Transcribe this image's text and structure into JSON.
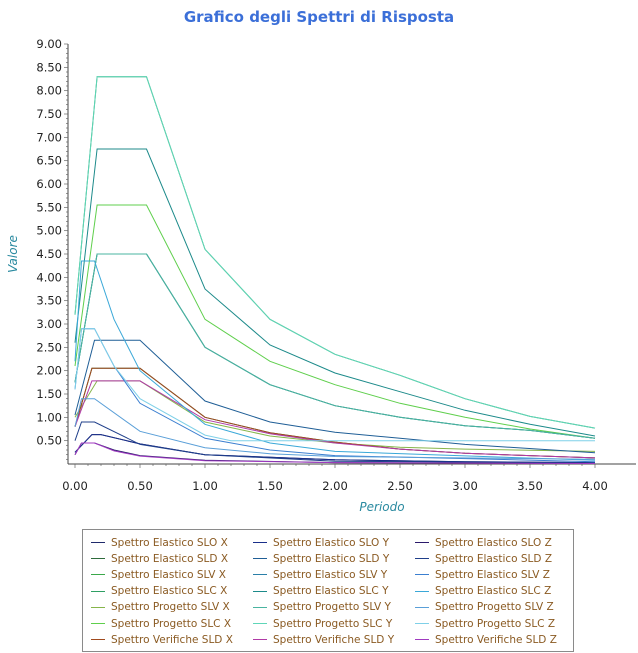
{
  "chart_data": {
    "type": "line",
    "title": "Grafico degli Spettri di Risposta",
    "xlabel": "Periodo",
    "ylabel": "Valore",
    "xlim": [
      0,
      4.0
    ],
    "ylim": [
      0,
      9.0
    ],
    "x_ticks": [
      "0.00",
      "0.50",
      "1.00",
      "1.50",
      "2.00",
      "2.50",
      "3.00",
      "3.50",
      "4.00"
    ],
    "y_ticks": [
      "0.50",
      "1.00",
      "1.50",
      "2.00",
      "2.50",
      "3.00",
      "3.50",
      "4.00",
      "4.50",
      "5.00",
      "5.50",
      "6.00",
      "6.50",
      "7.00",
      "7.50",
      "8.00",
      "8.50",
      "9.00"
    ],
    "grid": false,
    "legend_position": "bottom",
    "series": [
      {
        "name": "Spettro Elastico SLO X",
        "color": "#1f2a6b",
        "values": [
          [
            0.0,
            0.25
          ],
          [
            0.13,
            0.63
          ],
          [
            0.2,
            0.63
          ],
          [
            0.5,
            0.43
          ],
          [
            1.0,
            0.2
          ],
          [
            2.0,
            0.09
          ],
          [
            3.0,
            0.05
          ],
          [
            4.0,
            0.03
          ]
        ]
      },
      {
        "name": "Spettro Elastico SLD X",
        "color": "#2e6b3c",
        "values": [
          [
            0.0,
            0.8
          ],
          [
            0.13,
            2.05
          ],
          [
            0.5,
            2.05
          ],
          [
            1.0,
            1.0
          ],
          [
            1.5,
            0.67
          ],
          [
            2.0,
            0.47
          ],
          [
            2.5,
            0.32
          ],
          [
            3.0,
            0.23
          ],
          [
            4.0,
            0.13
          ]
        ]
      },
      {
        "name": "Spettro Elastico SLV X",
        "color": "#3aa84a",
        "values": [
          [
            0.0,
            1.75
          ],
          [
            0.17,
            4.5
          ],
          [
            0.55,
            4.5
          ],
          [
            1.0,
            2.5
          ],
          [
            1.5,
            1.7
          ],
          [
            2.0,
            1.25
          ],
          [
            2.5,
            1.0
          ],
          [
            3.0,
            0.82
          ],
          [
            3.5,
            0.72
          ],
          [
            4.0,
            0.55
          ]
        ]
      },
      {
        "name": "Spettro Elastico SLC X",
        "color": "#2e9f63",
        "values": [
          [
            0.0,
            3.2
          ],
          [
            0.17,
            8.3
          ],
          [
            0.55,
            8.3
          ],
          [
            1.0,
            4.6
          ],
          [
            1.5,
            3.1
          ],
          [
            2.0,
            2.35
          ],
          [
            2.5,
            1.9
          ],
          [
            3.0,
            1.4
          ],
          [
            3.5,
            1.02
          ],
          [
            4.0,
            0.77
          ]
        ]
      },
      {
        "name": "Spettro Progetto SLV X",
        "color": "#86b54a",
        "values": [
          [
            0.0,
            1.0
          ],
          [
            0.17,
            1.78
          ],
          [
            0.5,
            1.78
          ],
          [
            1.0,
            0.9
          ],
          [
            1.5,
            0.6
          ],
          [
            2.0,
            0.45
          ],
          [
            2.5,
            0.36
          ],
          [
            3.0,
            0.32
          ],
          [
            4.0,
            0.27
          ]
        ]
      },
      {
        "name": "Spettro Progetto SLC X",
        "color": "#5fcf4c",
        "values": [
          [
            0.0,
            2.1
          ],
          [
            0.17,
            5.55
          ],
          [
            0.55,
            5.55
          ],
          [
            1.0,
            3.1
          ],
          [
            1.5,
            2.2
          ],
          [
            2.0,
            1.7
          ],
          [
            2.5,
            1.3
          ],
          [
            3.0,
            1.0
          ],
          [
            3.5,
            0.75
          ],
          [
            4.0,
            0.55
          ]
        ]
      },
      {
        "name": "Spettro Verifiche SLD X",
        "color": "#a04a1e",
        "values": [
          [
            0.0,
            0.8
          ],
          [
            0.13,
            2.05
          ],
          [
            0.5,
            2.05
          ],
          [
            1.0,
            1.0
          ],
          [
            1.5,
            0.67
          ],
          [
            2.0,
            0.47
          ],
          [
            2.5,
            0.32
          ],
          [
            3.0,
            0.23
          ],
          [
            4.0,
            0.13
          ]
        ]
      },
      {
        "name": "Spettro Elastico SLO Y",
        "color": "#1a2f8a",
        "values": [
          [
            0.0,
            0.25
          ],
          [
            0.13,
            0.63
          ],
          [
            0.2,
            0.63
          ],
          [
            0.5,
            0.43
          ],
          [
            1.0,
            0.2
          ],
          [
            2.0,
            0.09
          ],
          [
            3.0,
            0.05
          ],
          [
            4.0,
            0.03
          ]
        ]
      },
      {
        "name": "Spettro Elastico SLD Y",
        "color": "#1f5e96",
        "values": [
          [
            0.0,
            1.05
          ],
          [
            0.15,
            2.65
          ],
          [
            0.5,
            2.65
          ],
          [
            1.0,
            1.35
          ],
          [
            1.5,
            0.9
          ],
          [
            2.0,
            0.68
          ],
          [
            2.5,
            0.55
          ],
          [
            3.0,
            0.42
          ],
          [
            4.0,
            0.24
          ]
        ]
      },
      {
        "name": "Spettro Elastico SLV Y",
        "color": "#2a7fa8",
        "values": [
          [
            0.0,
            1.75
          ],
          [
            0.17,
            4.5
          ],
          [
            0.55,
            4.5
          ],
          [
            1.0,
            2.5
          ],
          [
            1.5,
            1.7
          ],
          [
            2.0,
            1.25
          ],
          [
            2.5,
            1.0
          ],
          [
            3.0,
            0.82
          ],
          [
            3.5,
            0.72
          ],
          [
            4.0,
            0.55
          ]
        ]
      },
      {
        "name": "Spettro Elastico SLC Y",
        "color": "#1c8a8a",
        "values": [
          [
            0.0,
            2.6
          ],
          [
            0.17,
            6.75
          ],
          [
            0.55,
            6.75
          ],
          [
            1.0,
            3.75
          ],
          [
            1.5,
            2.55
          ],
          [
            2.0,
            1.95
          ],
          [
            2.5,
            1.55
          ],
          [
            3.0,
            1.15
          ],
          [
            3.5,
            0.85
          ],
          [
            4.0,
            0.6
          ]
        ]
      },
      {
        "name": "Spettro Progetto SLV Y",
        "color": "#4ab4a0",
        "values": [
          [
            0.0,
            1.75
          ],
          [
            0.17,
            4.5
          ],
          [
            0.55,
            4.5
          ],
          [
            1.0,
            2.5
          ],
          [
            1.5,
            1.7
          ],
          [
            2.0,
            1.25
          ],
          [
            2.5,
            1.0
          ],
          [
            3.0,
            0.82
          ],
          [
            3.5,
            0.72
          ],
          [
            4.0,
            0.55
          ]
        ]
      },
      {
        "name": "Spettro Progetto SLC Y",
        "color": "#5fd6b8",
        "values": [
          [
            0.0,
            3.2
          ],
          [
            0.17,
            8.3
          ],
          [
            0.55,
            8.3
          ],
          [
            1.0,
            4.6
          ],
          [
            1.5,
            3.1
          ],
          [
            2.0,
            2.35
          ],
          [
            2.5,
            1.9
          ],
          [
            3.0,
            1.4
          ],
          [
            3.5,
            1.02
          ],
          [
            4.0,
            0.77
          ]
        ]
      },
      {
        "name": "Spettro Verifiche SLD Y",
        "color": "#b03aa6",
        "values": [
          [
            0.0,
            0.8
          ],
          [
            0.13,
            1.78
          ],
          [
            0.5,
            1.78
          ],
          [
            1.0,
            0.95
          ],
          [
            1.5,
            0.65
          ],
          [
            2.0,
            0.45
          ],
          [
            2.5,
            0.32
          ],
          [
            3.0,
            0.23
          ],
          [
            4.0,
            0.13
          ]
        ]
      },
      {
        "name": "Spettro Elastico SLO Z",
        "color": "#2b1a6b",
        "values": [
          [
            0.0,
            0.2
          ],
          [
            0.05,
            0.45
          ],
          [
            0.15,
            0.45
          ],
          [
            0.3,
            0.3
          ],
          [
            0.5,
            0.18
          ],
          [
            1.0,
            0.08
          ],
          [
            2.0,
            0.03
          ],
          [
            4.0,
            0.01
          ]
        ]
      },
      {
        "name": "Spettro Elastico SLD Z",
        "color": "#1f3f8a",
        "values": [
          [
            0.0,
            0.5
          ],
          [
            0.05,
            0.9
          ],
          [
            0.15,
            0.9
          ],
          [
            0.5,
            0.42
          ],
          [
            1.0,
            0.2
          ],
          [
            2.0,
            0.06
          ],
          [
            4.0,
            0.02
          ]
        ]
      },
      {
        "name": "Spettro Elastico SLV Z",
        "color": "#3b7fd0",
        "values": [
          [
            0.0,
            1.6
          ],
          [
            0.05,
            2.9
          ],
          [
            0.15,
            2.9
          ],
          [
            0.3,
            2.1
          ],
          [
            0.5,
            1.3
          ],
          [
            1.0,
            0.55
          ],
          [
            1.5,
            0.3
          ],
          [
            2.0,
            0.18
          ],
          [
            4.0,
            0.05
          ]
        ]
      },
      {
        "name": "Spettro Elastico SLC Z",
        "color": "#3aa8d8",
        "values": [
          [
            0.0,
            2.2
          ],
          [
            0.05,
            4.35
          ],
          [
            0.15,
            4.35
          ],
          [
            0.3,
            3.1
          ],
          [
            0.5,
            2.0
          ],
          [
            1.0,
            0.85
          ],
          [
            1.5,
            0.45
          ],
          [
            2.0,
            0.27
          ],
          [
            4.0,
            0.08
          ]
        ]
      },
      {
        "name": "Spettro Progetto SLV Z",
        "color": "#5a9fd8",
        "values": [
          [
            0.0,
            0.8
          ],
          [
            0.05,
            1.4
          ],
          [
            0.15,
            1.4
          ],
          [
            0.5,
            0.7
          ],
          [
            1.0,
            0.35
          ],
          [
            1.5,
            0.22
          ],
          [
            2.0,
            0.16
          ],
          [
            4.0,
            0.1
          ]
        ]
      },
      {
        "name": "Spettro Progetto SLC Z",
        "color": "#7fd0e8",
        "values": [
          [
            0.0,
            1.6
          ],
          [
            0.05,
            2.9
          ],
          [
            0.15,
            2.9
          ],
          [
            0.3,
            2.1
          ],
          [
            0.5,
            1.4
          ],
          [
            1.0,
            0.62
          ],
          [
            1.2,
            0.5
          ],
          [
            4.0,
            0.5
          ]
        ]
      },
      {
        "name": "Spettro Verifiche SLD Z",
        "color": "#a03ac0",
        "values": [
          [
            0.0,
            0.2
          ],
          [
            0.05,
            0.45
          ],
          [
            0.15,
            0.45
          ],
          [
            0.3,
            0.28
          ],
          [
            0.5,
            0.17
          ],
          [
            1.0,
            0.07
          ],
          [
            2.0,
            0.03
          ],
          [
            4.0,
            0.01
          ]
        ]
      }
    ]
  }
}
